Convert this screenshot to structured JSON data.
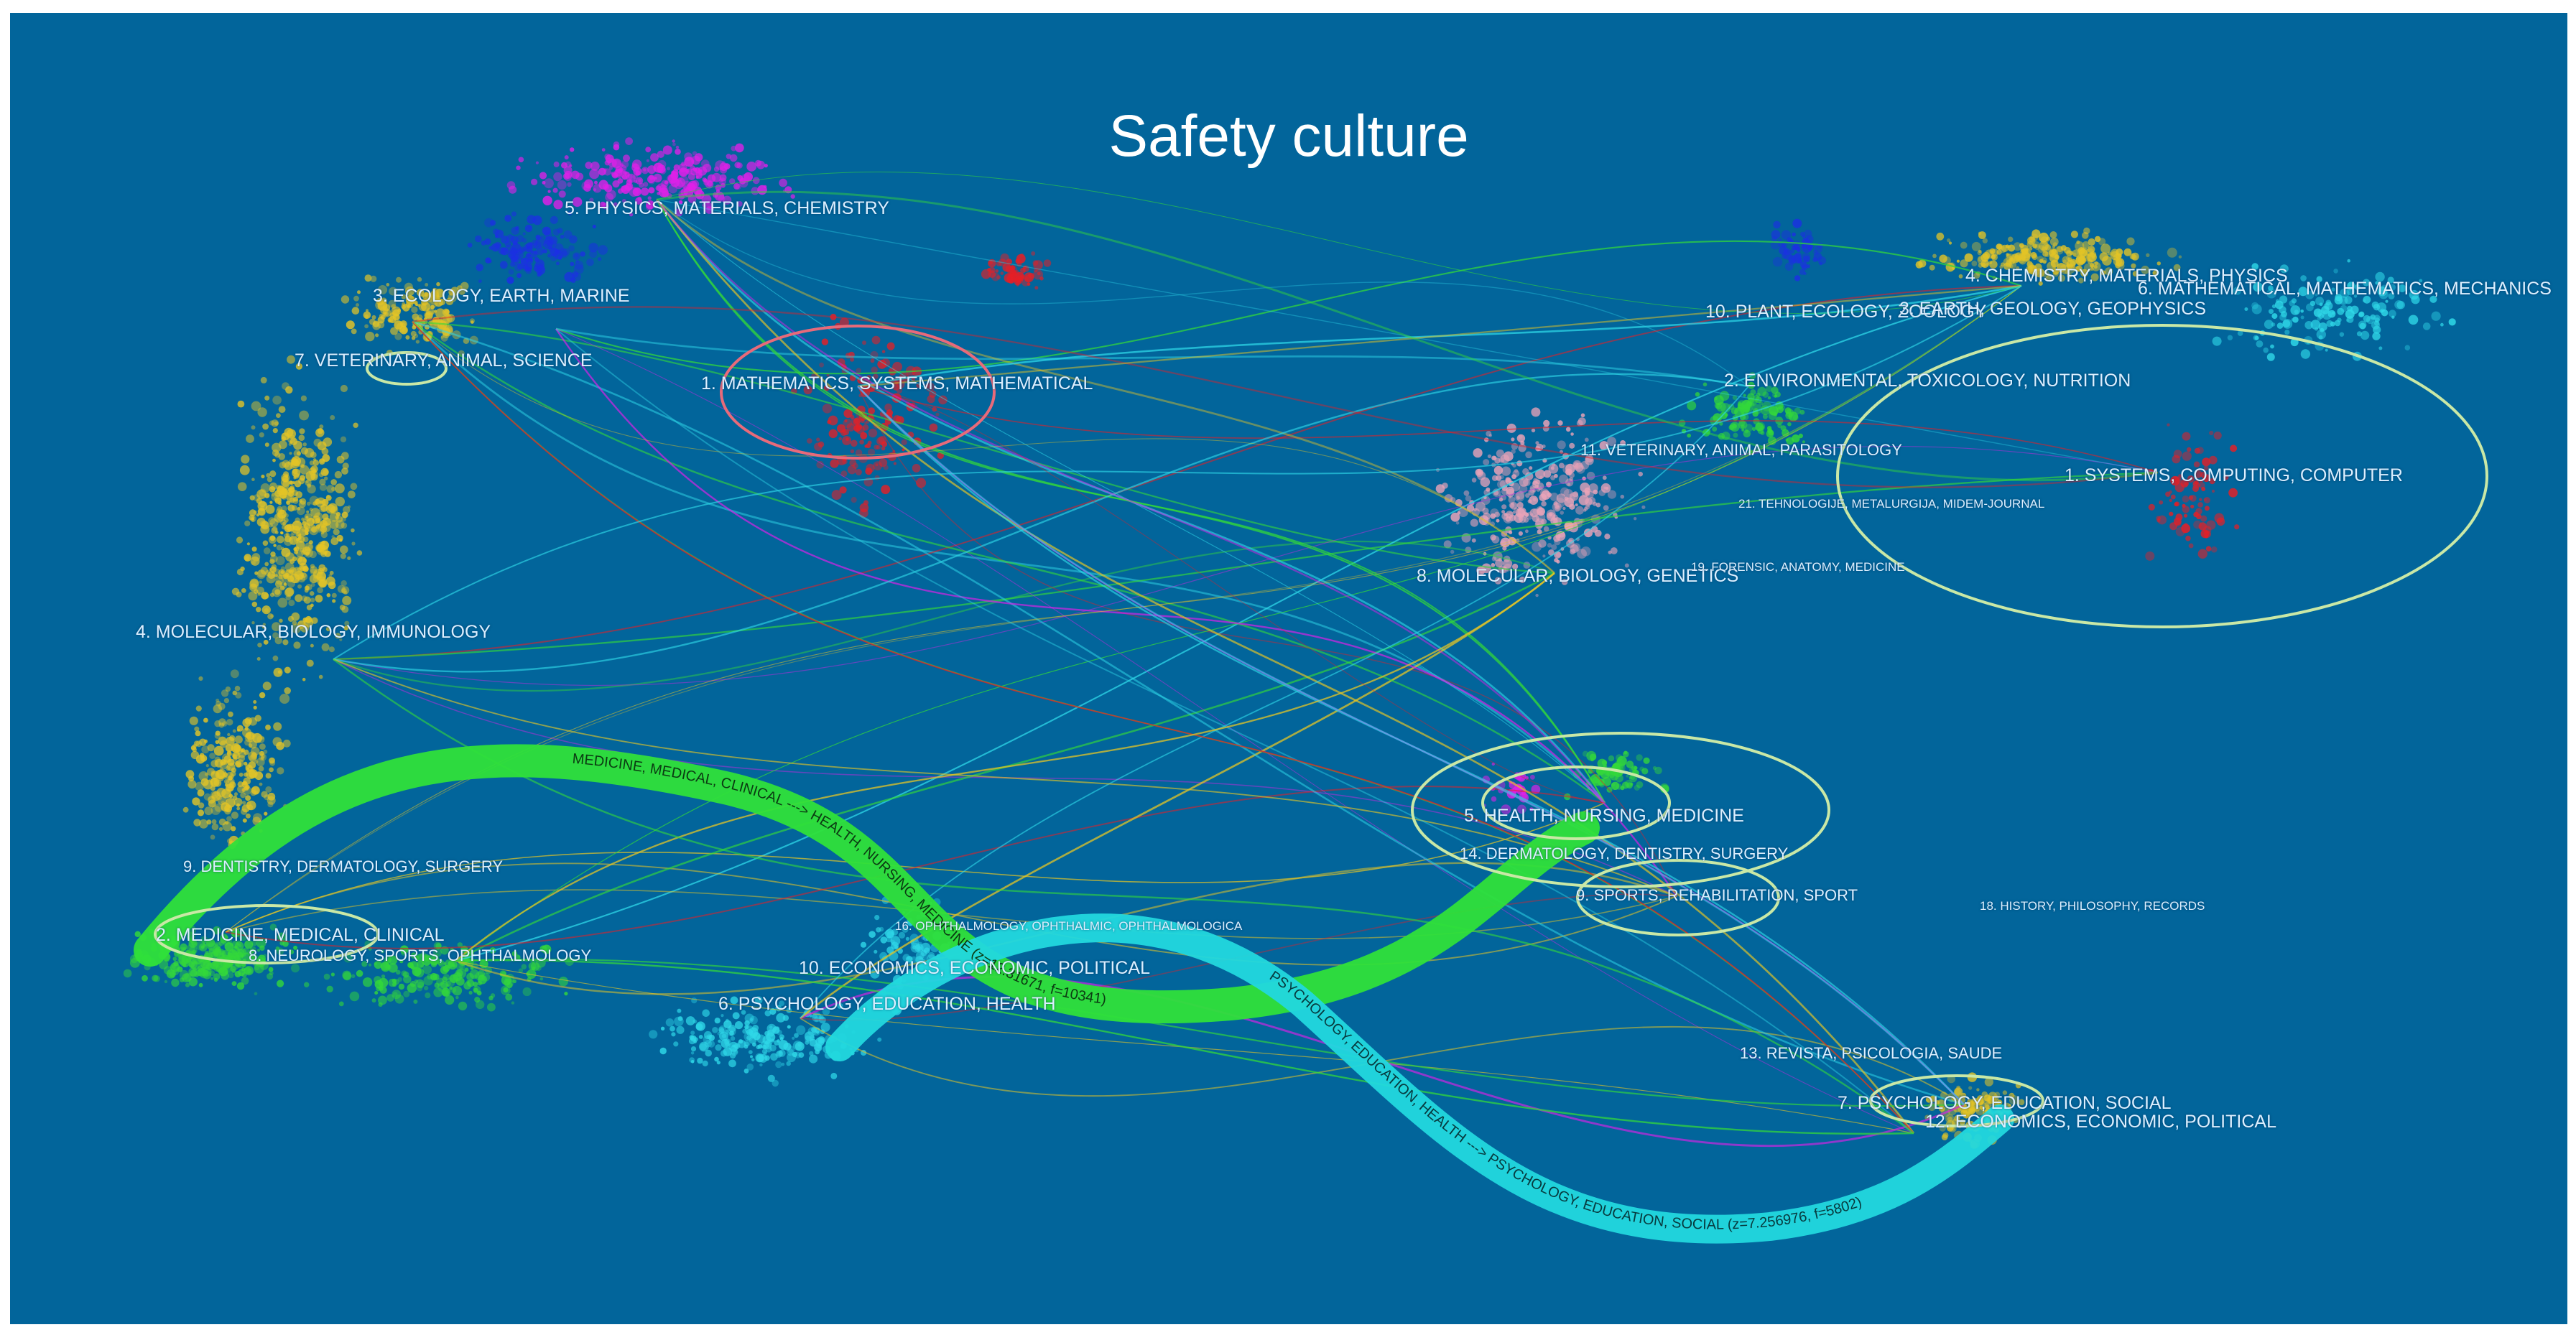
{
  "title": "Safety culture",
  "colors": {
    "background": "#02659b",
    "green_flow": "#2fe03a",
    "cyan_flow": "#22d8de",
    "ellipse": "#c9e8a6",
    "magenta": "#e020e8",
    "yellow": "#e3c426",
    "red": "#e51f26",
    "blue": "#1c2fe4",
    "cyan": "#2fd8e8",
    "pink": "#e9a3b8",
    "green": "#33d83a",
    "label": "#dcefff"
  },
  "left_map": {
    "clusters": [
      {
        "id": "5",
        "label": "5. PHYSICS, MATERIALS, CHEMISTRY"
      },
      {
        "id": "3",
        "label": "3. ECOLOGY, EARTH, MARINE"
      },
      {
        "id": "7",
        "label": "7. VETERINARY, ANIMAL, SCIENCE"
      },
      {
        "id": "1",
        "label": "1. MATHEMATICS, SYSTEMS, MATHEMATICAL"
      },
      {
        "id": "4",
        "label": "4. MOLECULAR, BIOLOGY, IMMUNOLOGY"
      },
      {
        "id": "9",
        "label": "9. DENTISTRY, DERMATOLOGY, SURGERY"
      },
      {
        "id": "2",
        "label": "2. MEDICINE, MEDICAL, CLINICAL"
      },
      {
        "id": "8",
        "label": "8. NEUROLOGY, SPORTS, OPHTHALMOLOGY"
      },
      {
        "id": "16",
        "label": "16. OPHTHALMOLOGY, OPHTHALMIC, OPHTHALMOLOGICA"
      },
      {
        "id": "10",
        "label": "10. ECONOMICS, ECONOMIC, POLITICAL"
      },
      {
        "id": "6",
        "label": "6. PSYCHOLOGY, EDUCATION, HEALTH"
      }
    ]
  },
  "right_map": {
    "clusters": [
      {
        "id": "4",
        "label": "4. CHEMISTRY, MATERIALS, PHYSICS"
      },
      {
        "id": "6",
        "label": "6. MATHEMATICAL, MATHEMATICS, MECHANICS"
      },
      {
        "id": "10",
        "label": "10. PLANT, ECOLOGY, ZOOLOGY"
      },
      {
        "id": "3",
        "label": "3. EARTH, GEOLOGY, GEOPHYSICS"
      },
      {
        "id": "2",
        "label": "2. ENVIRONMENTAL, TOXICOLOGY, NUTRITION"
      },
      {
        "id": "11",
        "label": "11. VETERINARY, ANIMAL, PARASITOLOGY"
      },
      {
        "id": "1",
        "label": "1. SYSTEMS, COMPUTING, COMPUTER"
      },
      {
        "id": "21",
        "label": "21. TEHNOLOGIJE, METALURGIJA, MIDEM-JOURNAL"
      },
      {
        "id": "8",
        "label": "8. MOLECULAR, BIOLOGY, GENETICS"
      },
      {
        "id": "19",
        "label": "19. FORENSIC, ANATOMY, MEDICINE"
      },
      {
        "id": "5",
        "label": "5. HEALTH, NURSING, MEDICINE"
      },
      {
        "id": "14",
        "label": "14. DERMATOLOGY, DENTISTRY, SURGERY"
      },
      {
        "id": "9",
        "label": "9. SPORTS, REHABILITATION, SPORT"
      },
      {
        "id": "18",
        "label": "18. HISTORY, PHILOSOPHY, RECORDS"
      },
      {
        "id": "13",
        "label": "13. REVISTA, PSICOLOGIA, SAUDE"
      },
      {
        "id": "7",
        "label": "7. PSYCHOLOGY, EDUCATION, SOCIAL"
      },
      {
        "id": "12",
        "label": "12. ECONOMICS, ECONOMIC, POLITICAL"
      }
    ]
  },
  "flows": [
    {
      "label": "MEDICINE, MEDICAL, CLINICAL ---> HEALTH, NURSING, MEDICINE (z=12.31671, f=10341)"
    },
    {
      "label": "PSYCHOLOGY, EDUCATION, HEALTH ---> PSYCHOLOGY, EDUCATION, SOCIAL (z=7.256976, f=5802)"
    }
  ]
}
